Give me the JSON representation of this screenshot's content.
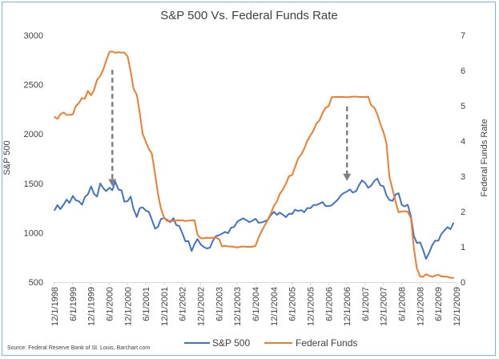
{
  "chart_data": {
    "type": "line",
    "title": "S&P 500 Vs. Federal Funds Rate",
    "xlabel": "",
    "ylabel": "S&P 500",
    "y2label": "Federal Funds Rate",
    "ylim": [
      500,
      3000
    ],
    "y2lim": [
      0,
      7
    ],
    "yticks": [
      500,
      1000,
      1500,
      2000,
      2500,
      3000
    ],
    "y2ticks": [
      0,
      1,
      2,
      3,
      4,
      5,
      6,
      7
    ],
    "xlim": [
      1998.917,
      2009.917
    ],
    "x_tick_labels": [
      "12/1/1998",
      "6/1/1999",
      "12/1/1999",
      "6/1/2000",
      "12/1/2000",
      "6/1/2001",
      "12/1/2001",
      "6/1/2002",
      "12/1/2002",
      "6/1/2003",
      "12/1/2003",
      "6/1/2004",
      "12/1/2004",
      "6/1/2005",
      "12/1/2005",
      "6/1/2006",
      "12/1/2006",
      "6/1/2007",
      "12/1/2007",
      "6/1/2008",
      "12/1/2008",
      "6/1/2009",
      "12/1/2009"
    ],
    "grid": false,
    "legend": "bottom",
    "source": "Source: Federal Reserve Bank of St. Louis, Barchart.com",
    "series": [
      {
        "name": "S&P 500",
        "axis": "left",
        "color": "#4472c4",
        "x": [
          1998.92,
          1999.0,
          1999.08,
          1999.17,
          1999.25,
          1999.33,
          1999.42,
          1999.5,
          1999.58,
          1999.67,
          1999.75,
          1999.83,
          1999.92,
          2000.0,
          2000.08,
          2000.17,
          2000.25,
          2000.33,
          2000.42,
          2000.5,
          2000.58,
          2000.67,
          2000.75,
          2000.83,
          2000.92,
          2001.0,
          2001.08,
          2001.17,
          2001.25,
          2001.33,
          2001.42,
          2001.5,
          2001.58,
          2001.67,
          2001.75,
          2001.83,
          2001.92,
          2002.0,
          2002.08,
          2002.17,
          2002.25,
          2002.33,
          2002.42,
          2002.5,
          2002.58,
          2002.67,
          2002.75,
          2002.83,
          2002.92,
          2003.0,
          2003.08,
          2003.17,
          2003.25,
          2003.33,
          2003.42,
          2003.5,
          2003.58,
          2003.67,
          2003.75,
          2003.83,
          2003.92,
          2004.0,
          2004.08,
          2004.17,
          2004.25,
          2004.33,
          2004.42,
          2004.5,
          2004.58,
          2004.67,
          2004.75,
          2004.83,
          2004.92,
          2005.0,
          2005.08,
          2005.17,
          2005.25,
          2005.33,
          2005.42,
          2005.5,
          2005.58,
          2005.67,
          2005.75,
          2005.83,
          2005.92,
          2006.0,
          2006.08,
          2006.17,
          2006.25,
          2006.33,
          2006.42,
          2006.5,
          2006.58,
          2006.67,
          2006.75,
          2006.83,
          2006.92,
          2007.0,
          2007.08,
          2007.17,
          2007.25,
          2007.33,
          2007.42,
          2007.5,
          2007.58,
          2007.67,
          2007.75,
          2007.83,
          2007.92,
          2008.0,
          2008.08,
          2008.17,
          2008.25,
          2008.33,
          2008.42,
          2008.5,
          2008.58,
          2008.67,
          2008.75,
          2008.83,
          2008.92,
          2009.0,
          2009.08,
          2009.17,
          2009.25,
          2009.33,
          2009.42,
          2009.5,
          2009.58,
          2009.67,
          2009.75,
          2009.83
        ],
        "values": [
          1229,
          1280,
          1238,
          1286,
          1335,
          1302,
          1373,
          1329,
          1320,
          1283,
          1362,
          1389,
          1469,
          1394,
          1366,
          1499,
          1452,
          1421,
          1455,
          1431,
          1518,
          1437,
          1429,
          1315,
          1320,
          1366,
          1240,
          1160,
          1249,
          1256,
          1224,
          1211,
          1134,
          1041,
          1060,
          1139,
          1148,
          1130,
          1107,
          1147,
          1077,
          1067,
          990,
          912,
          916,
          815,
          886,
          936,
          880,
          856,
          841,
          848,
          916,
          964,
          975,
          990,
          1008,
          996,
          1051,
          1058,
          1112,
          1131,
          1145,
          1126,
          1107,
          1121,
          1141,
          1101,
          1104,
          1115,
          1130,
          1174,
          1212,
          1181,
          1204,
          1181,
          1157,
          1192,
          1191,
          1234,
          1220,
          1229,
          1207,
          1249,
          1248,
          1280,
          1281,
          1295,
          1311,
          1270,
          1270,
          1277,
          1304,
          1336,
          1378,
          1401,
          1418,
          1438,
          1407,
          1421,
          1482,
          1531,
          1503,
          1455,
          1474,
          1527,
          1549,
          1481,
          1468,
          1379,
          1331,
          1323,
          1386,
          1400,
          1280,
          1267,
          1283,
          1165,
          969,
          896,
          903,
          826,
          735,
          798,
          873,
          919,
          919,
          987,
          1021,
          1057,
          1036,
          1096
        ]
      },
      {
        "name": "Federal Funds",
        "axis": "right",
        "color": "#ed7d31",
        "x": [
          1998.92,
          1999.0,
          1999.08,
          1999.17,
          1999.25,
          1999.33,
          1999.42,
          1999.5,
          1999.58,
          1999.67,
          1999.75,
          1999.83,
          1999.92,
          2000.0,
          2000.08,
          2000.17,
          2000.25,
          2000.33,
          2000.42,
          2000.5,
          2000.58,
          2000.67,
          2000.75,
          2000.83,
          2000.92,
          2001.0,
          2001.08,
          2001.17,
          2001.25,
          2001.33,
          2001.42,
          2001.5,
          2001.58,
          2001.67,
          2001.75,
          2001.83,
          2001.92,
          2002.0,
          2002.08,
          2002.17,
          2002.25,
          2002.33,
          2002.42,
          2002.5,
          2002.58,
          2002.67,
          2002.75,
          2002.83,
          2002.92,
          2003.0,
          2003.08,
          2003.17,
          2003.25,
          2003.33,
          2003.42,
          2003.5,
          2003.58,
          2003.67,
          2003.75,
          2003.83,
          2003.92,
          2004.0,
          2004.08,
          2004.17,
          2004.25,
          2004.33,
          2004.42,
          2004.5,
          2004.58,
          2004.67,
          2004.75,
          2004.83,
          2004.92,
          2005.0,
          2005.08,
          2005.17,
          2005.25,
          2005.33,
          2005.42,
          2005.5,
          2005.58,
          2005.67,
          2005.75,
          2005.83,
          2005.92,
          2006.0,
          2006.08,
          2006.17,
          2006.25,
          2006.33,
          2006.42,
          2006.5,
          2006.58,
          2006.67,
          2006.75,
          2006.83,
          2006.92,
          2007.0,
          2007.08,
          2007.17,
          2007.25,
          2007.33,
          2007.42,
          2007.5,
          2007.58,
          2007.67,
          2007.75,
          2007.83,
          2007.92,
          2008.0,
          2008.08,
          2008.17,
          2008.25,
          2008.33,
          2008.42,
          2008.5,
          2008.58,
          2008.67,
          2008.75,
          2008.83,
          2008.92,
          2009.0,
          2009.08,
          2009.17,
          2009.25,
          2009.33,
          2009.42,
          2009.5,
          2009.58,
          2009.67,
          2009.75,
          2009.83
        ],
        "values": [
          4.68,
          4.63,
          4.76,
          4.81,
          4.74,
          4.74,
          4.76,
          4.99,
          5.07,
          5.22,
          5.2,
          5.42,
          5.3,
          5.45,
          5.73,
          5.85,
          6.02,
          6.27,
          6.53,
          6.54,
          6.5,
          6.52,
          6.51,
          6.51,
          6.4,
          5.98,
          5.49,
          5.31,
          4.8,
          4.21,
          3.97,
          3.77,
          3.65,
          3.07,
          2.49,
          2.09,
          1.82,
          1.73,
          1.74,
          1.73,
          1.75,
          1.75,
          1.75,
          1.73,
          1.74,
          1.75,
          1.75,
          1.34,
          1.24,
          1.24,
          1.26,
          1.25,
          1.26,
          1.26,
          1.22,
          1.01,
          1.03,
          1.01,
          1.01,
          1.0,
          0.98,
          1.0,
          1.01,
          1.0,
          1.0,
          1.0,
          1.03,
          1.26,
          1.43,
          1.61,
          1.76,
          1.93,
          2.16,
          2.28,
          2.5,
          2.63,
          2.79,
          3.0,
          3.04,
          3.26,
          3.5,
          3.62,
          3.78,
          4.0,
          4.16,
          4.29,
          4.49,
          4.59,
          4.79,
          4.94,
          4.99,
          5.24,
          5.25,
          5.25,
          5.25,
          5.25,
          5.24,
          5.25,
          5.26,
          5.26,
          5.25,
          5.25,
          5.25,
          5.26,
          5.02,
          4.94,
          4.76,
          4.49,
          4.24,
          3.94,
          2.98,
          2.61,
          2.28,
          1.98,
          2.0,
          2.01,
          2.0,
          1.81,
          0.97,
          0.39,
          0.16,
          0.15,
          0.22,
          0.18,
          0.15,
          0.18,
          0.21,
          0.16,
          0.16,
          0.15,
          0.12,
          0.12
        ]
      }
    ],
    "annotations": [
      {
        "type": "dashed-arrow",
        "x": 2000.5,
        "from": 2650,
        "to": 1470
      },
      {
        "type": "dashed-arrow",
        "x": 2006.92,
        "from": 2280,
        "to": 1525
      }
    ]
  }
}
